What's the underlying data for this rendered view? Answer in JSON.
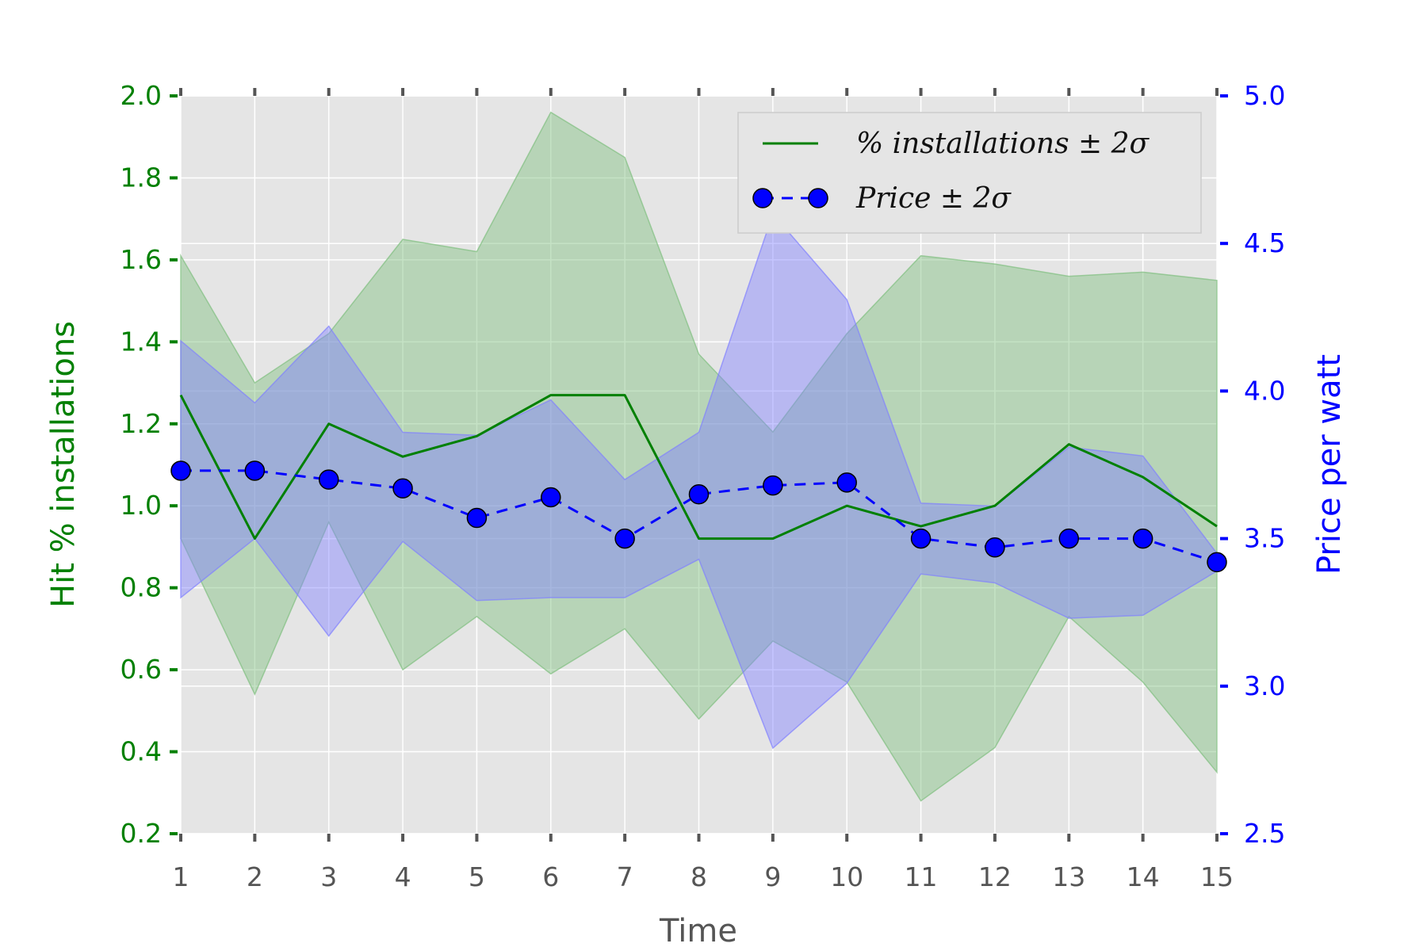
{
  "chart_data": {
    "type": "line",
    "x": [
      1,
      2,
      3,
      4,
      5,
      6,
      7,
      8,
      9,
      10,
      11,
      12,
      13,
      14,
      15
    ],
    "xlim": [
      1,
      15
    ],
    "xlabel": "Time",
    "xticks": [
      "1",
      "2",
      "3",
      "4",
      "5",
      "6",
      "7",
      "8",
      "9",
      "10",
      "11",
      "12",
      "13",
      "14",
      "15"
    ],
    "left_axis": {
      "label": "Hit % installations",
      "ylim": [
        0.2,
        2.0
      ],
      "ticks": [
        "0.2",
        "0.4",
        "0.6",
        "0.8",
        "1.0",
        "1.2",
        "1.4",
        "1.6",
        "1.8",
        "2.0"
      ],
      "color": "#008000"
    },
    "right_axis": {
      "label": "Price per watt",
      "ylim": [
        2.5,
        5.0
      ],
      "ticks": [
        "2.5",
        "3.0",
        "3.5",
        "4.0",
        "4.5",
        "5.0"
      ],
      "color": "#0000ff"
    },
    "series": [
      {
        "name": "% installations ± 2σ",
        "axis": "left",
        "style": "solid",
        "color": "#008000",
        "values": [
          1.27,
          0.92,
          1.2,
          1.12,
          1.17,
          1.27,
          1.27,
          0.92,
          0.92,
          1.0,
          0.95,
          1.0,
          1.15,
          1.07,
          0.95
        ],
        "upper": [
          1.61,
          1.3,
          1.42,
          1.65,
          1.62,
          1.96,
          1.85,
          1.37,
          1.18,
          1.42,
          1.61,
          1.59,
          1.56,
          1.57,
          1.55
        ],
        "lower": [
          0.92,
          0.54,
          0.96,
          0.6,
          0.73,
          0.59,
          0.7,
          0.48,
          0.67,
          0.57,
          0.28,
          0.41,
          0.73,
          0.57,
          0.35
        ],
        "band_color": "#7fbf7f"
      },
      {
        "name": "Price ± 2σ",
        "axis": "right",
        "style": "dashed",
        "marker": "circle",
        "color": "#0000ff",
        "values": [
          3.73,
          3.73,
          3.7,
          3.67,
          3.57,
          3.64,
          3.5,
          3.65,
          3.68,
          3.69,
          3.5,
          3.47,
          3.5,
          3.5,
          3.42
        ],
        "upper": [
          4.17,
          3.96,
          4.22,
          3.86,
          3.85,
          3.97,
          3.7,
          3.86,
          4.6,
          4.31,
          3.62,
          3.61,
          3.81,
          3.78,
          3.45
        ],
        "lower": [
          3.3,
          3.5,
          3.17,
          3.49,
          3.29,
          3.3,
          3.3,
          3.43,
          2.79,
          3.01,
          3.38,
          3.35,
          3.23,
          3.24,
          3.39
        ],
        "band_color": "#8080ff"
      }
    ],
    "legend": {
      "placement": "top-right",
      "entries": [
        "% installations ± 2σ",
        "Price ± 2σ"
      ]
    },
    "grid": true,
    "background": "#e5e5e5"
  }
}
